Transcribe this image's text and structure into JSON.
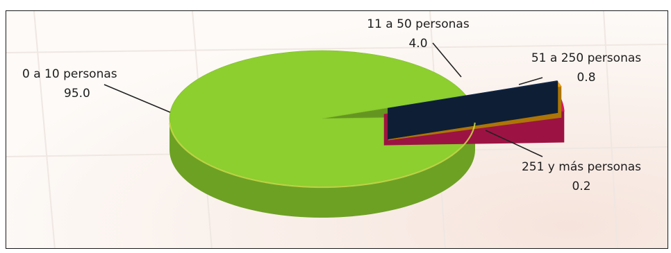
{
  "header_fragment": "",
  "chart_data": {
    "type": "pie",
    "title": "",
    "style": "3d-exploded",
    "slices": [
      {
        "label": "0 a 10 personas",
        "value": 95.0,
        "value_text": "95.0",
        "color": "#8ccf2e"
      },
      {
        "label": "11 a 50 personas",
        "value": 4.0,
        "value_text": "4.0",
        "color": "#d81b5d"
      },
      {
        "label": "51 a 250 personas",
        "value": 0.8,
        "value_text": "0.8",
        "color": "#f0a30a"
      },
      {
        "label": "251 y más personas",
        "value": 0.2,
        "value_text": "0.2",
        "color": "#13294a"
      }
    ],
    "legend": "none"
  }
}
